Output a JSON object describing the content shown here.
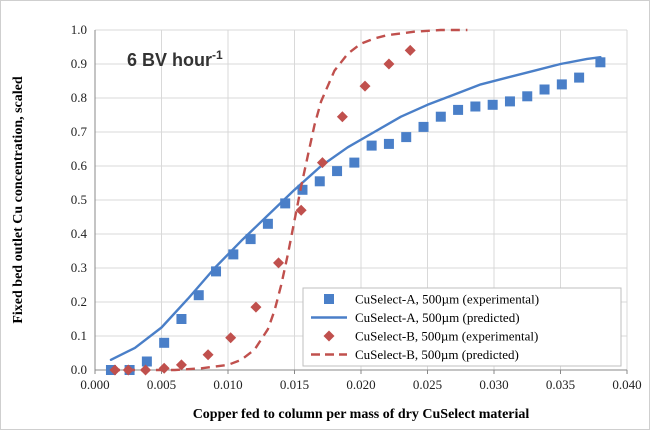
{
  "chart_data": {
    "type": "scatter",
    "annotation": {
      "text": "6 BV hour",
      "sup": "-1"
    },
    "xlabel": "Copper fed to column per mass of dry CuSelect material",
    "ylabel": "Fixed bed outlet Cu concentration, scaled",
    "xlim": [
      0.0,
      0.04
    ],
    "ylim": [
      0.0,
      1.0
    ],
    "xticks": [
      "0.000",
      "0.005",
      "0.010",
      "0.015",
      "0.020",
      "0.025",
      "0.030",
      "0.035",
      "0.040"
    ],
    "yticks": [
      "0.0",
      "0.1",
      "0.2",
      "0.3",
      "0.4",
      "0.5",
      "0.6",
      "0.7",
      "0.8",
      "0.9",
      "1.0"
    ],
    "grid": true,
    "legend_position": "bottom-right",
    "colors": {
      "blue": "#4a7fc8",
      "red": "#c0504d"
    },
    "series": [
      {
        "name": "CuSelect-A, 500µm (experimental)",
        "kind": "markers-square",
        "color": "#4a7fc8",
        "x": [
          0.0012,
          0.0026,
          0.0039,
          0.0052,
          0.0065,
          0.0078,
          0.0091,
          0.0104,
          0.0117,
          0.013,
          0.0143,
          0.0156,
          0.0169,
          0.0182,
          0.0195,
          0.0208,
          0.0221,
          0.0234,
          0.0247,
          0.026,
          0.0273,
          0.0286,
          0.0299,
          0.0312,
          0.0325,
          0.0338,
          0.0351,
          0.0364,
          0.038
        ],
        "y": [
          0.0,
          0.0,
          0.025,
          0.08,
          0.15,
          0.22,
          0.29,
          0.34,
          0.385,
          0.43,
          0.49,
          0.53,
          0.555,
          0.585,
          0.61,
          0.66,
          0.665,
          0.685,
          0.715,
          0.745,
          0.765,
          0.775,
          0.78,
          0.79,
          0.805,
          0.825,
          0.84,
          0.86,
          0.905
        ]
      },
      {
        "name": "CuSelect-A, 500µm (predicted)",
        "kind": "line-solid",
        "color": "#4a7fc8",
        "x": [
          0.0012,
          0.003,
          0.005,
          0.007,
          0.009,
          0.011,
          0.013,
          0.015,
          0.017,
          0.019,
          0.021,
          0.023,
          0.025,
          0.027,
          0.029,
          0.031,
          0.033,
          0.035,
          0.037,
          0.038
        ],
        "y": [
          0.03,
          0.065,
          0.125,
          0.21,
          0.3,
          0.38,
          0.455,
          0.53,
          0.6,
          0.655,
          0.7,
          0.745,
          0.78,
          0.81,
          0.84,
          0.86,
          0.88,
          0.9,
          0.915,
          0.92
        ]
      },
      {
        "name": "CuSelect-B, 500µm (experimental)",
        "kind": "markers-diamond",
        "color": "#c0504d",
        "x": [
          0.0015,
          0.0025,
          0.0038,
          0.0052,
          0.0065,
          0.0085,
          0.0102,
          0.0121,
          0.0138,
          0.0155,
          0.0171,
          0.0186,
          0.0203,
          0.0221,
          0.0237
        ],
        "y": [
          0.0,
          0.0,
          0.0,
          0.005,
          0.015,
          0.045,
          0.095,
          0.185,
          0.315,
          0.47,
          0.61,
          0.745,
          0.835,
          0.9,
          0.94
        ]
      },
      {
        "name": "CuSelect-B, 500µm (predicted)",
        "kind": "line-dashed",
        "color": "#c0504d",
        "x": [
          0.0012,
          0.004,
          0.006,
          0.008,
          0.01,
          0.011,
          0.012,
          0.013,
          0.0135,
          0.014,
          0.0145,
          0.015,
          0.0155,
          0.016,
          0.0165,
          0.017,
          0.018,
          0.019,
          0.02,
          0.021,
          0.022,
          0.024,
          0.026,
          0.028
        ],
        "y": [
          0.0,
          0.0,
          0.0,
          0.005,
          0.015,
          0.03,
          0.06,
          0.12,
          0.175,
          0.25,
          0.34,
          0.44,
          0.54,
          0.63,
          0.72,
          0.79,
          0.88,
          0.93,
          0.96,
          0.975,
          0.985,
          0.995,
          1.0,
          1.0
        ]
      }
    ]
  }
}
